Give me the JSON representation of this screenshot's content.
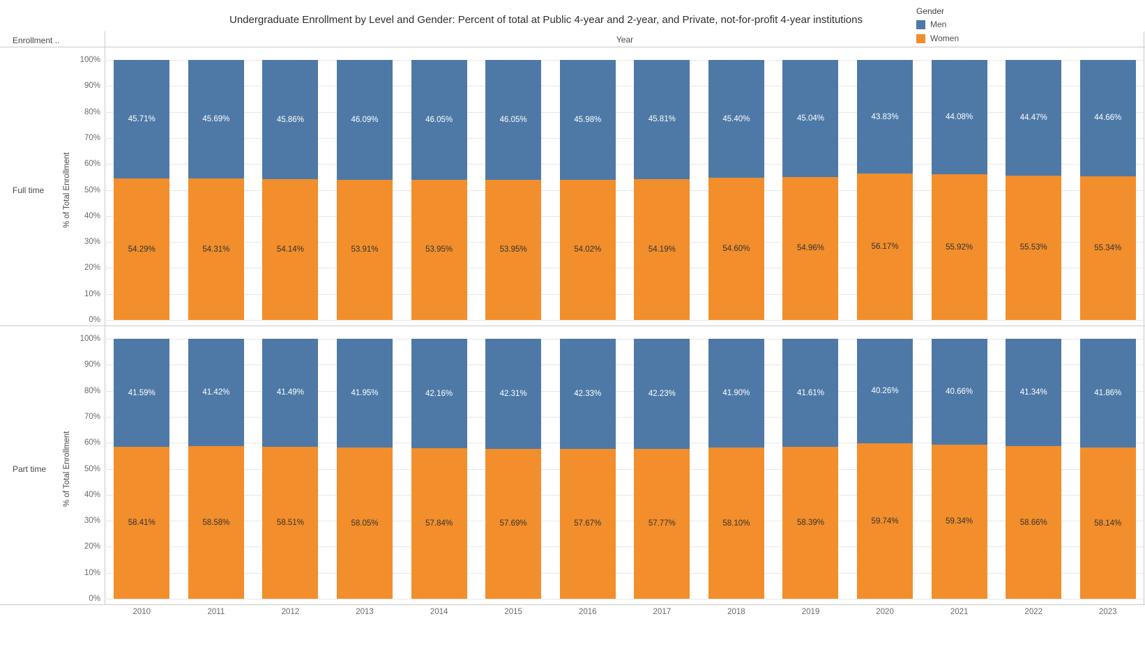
{
  "row_field_label": "Enrollment ..",
  "legend": {
    "title": "Gender",
    "items": [
      {
        "label": "Men",
        "color": "#4e79a7"
      },
      {
        "label": "Women",
        "color": "#f28e2b"
      }
    ]
  },
  "chart_data": {
    "type": "bar",
    "stacked": "percent",
    "title": "Undergraduate Enrollment by Level and Gender: Percent of total at Public 4-year and 2-year, and Private, not-for-profit 4-year institutions",
    "xlabel": "Year",
    "ylabel": "% of Total Enrollment",
    "ylim": [
      0,
      100
    ],
    "y_tick_labels": [
      "0%",
      "10%",
      "20%",
      "30%",
      "40%",
      "50%",
      "60%",
      "70%",
      "80%",
      "90%",
      "100%"
    ],
    "grid": true,
    "legend_title": "Gender",
    "legend_position": "top-right",
    "categories": [
      "2010",
      "2011",
      "2012",
      "2013",
      "2014",
      "2015",
      "2016",
      "2017",
      "2018",
      "2019",
      "2020",
      "2021",
      "2022",
      "2023"
    ],
    "panels": [
      {
        "row_label": "Full time",
        "series": [
          {
            "name": "Men",
            "color": "#4e79a7",
            "label_color": "#ffffff",
            "values": [
              45.71,
              45.69,
              45.86,
              46.09,
              46.05,
              46.05,
              45.98,
              45.81,
              45.4,
              45.04,
              43.83,
              44.08,
              44.47,
              44.66
            ]
          },
          {
            "name": "Women",
            "color": "#f28e2b",
            "label_color": "#333333",
            "values": [
              54.29,
              54.31,
              54.14,
              53.91,
              53.95,
              53.95,
              54.02,
              54.19,
              54.6,
              54.96,
              56.17,
              55.92,
              55.53,
              55.34
            ]
          }
        ]
      },
      {
        "row_label": "Part time",
        "series": [
          {
            "name": "Men",
            "color": "#4e79a7",
            "label_color": "#ffffff",
            "values": [
              41.59,
              41.42,
              41.49,
              41.95,
              42.16,
              42.31,
              42.33,
              42.23,
              41.9,
              41.61,
              40.26,
              40.66,
              41.34,
              41.86
            ]
          },
          {
            "name": "Women",
            "color": "#f28e2b",
            "label_color": "#333333",
            "values": [
              58.41,
              58.58,
              58.51,
              58.05,
              57.84,
              57.69,
              57.67,
              57.77,
              58.1,
              58.39,
              59.74,
              59.34,
              58.66,
              58.14
            ]
          }
        ]
      }
    ]
  }
}
